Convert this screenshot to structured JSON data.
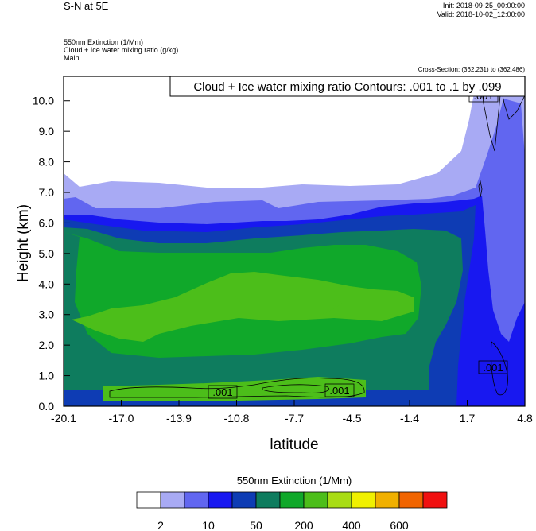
{
  "header": {
    "title": "S-N at 5E",
    "init": "Init: 2018-09-25_00:00:00",
    "valid": "Valid: 2018-10-02_12:00:00",
    "field1": "550nm Extinction   (1/Mm)",
    "field2": "Cloud + Ice water mixing ratio   (g/kg)",
    "field3": "Main",
    "cross_section": "Cross-Section: (362,231) to (362,486)"
  },
  "chart_data": {
    "type": "heatmap",
    "xlabel": "latitude",
    "ylabel": "Height (km)",
    "x_ticks": [
      "-20.1",
      "-17.0",
      "-13.9",
      "-10.8",
      "-7.7",
      "-4.5",
      "-1.4",
      "1.7",
      "4.8"
    ],
    "y_ticks": [
      "0.0",
      "1.0",
      "2.0",
      "3.0",
      "4.0",
      "5.0",
      "6.0",
      "7.0",
      "8.0",
      "9.0",
      "10.0"
    ],
    "xlim": [
      -20.1,
      4.8
    ],
    "ylim": [
      0,
      10.8
    ],
    "contour_title": "Cloud + Ice water mixing ratio Contours: .001 to .1 by .099",
    "contour_labels": [
      ".001",
      ".001",
      ".001",
      ".001"
    ],
    "colorbar": {
      "title": "550nm Extinction  (1/Mm)",
      "colors": [
        "#ffffff",
        "#a8aaf4",
        "#6166f0",
        "#1818f0",
        "#0e3cb4",
        "#0e7c5e",
        "#10a82a",
        "#4cbe1a",
        "#a8dc14",
        "#f0f000",
        "#f0b000",
        "#f06400",
        "#f01010"
      ],
      "labels": [
        "2",
        "10",
        "50",
        "200",
        "400",
        "600"
      ]
    }
  }
}
